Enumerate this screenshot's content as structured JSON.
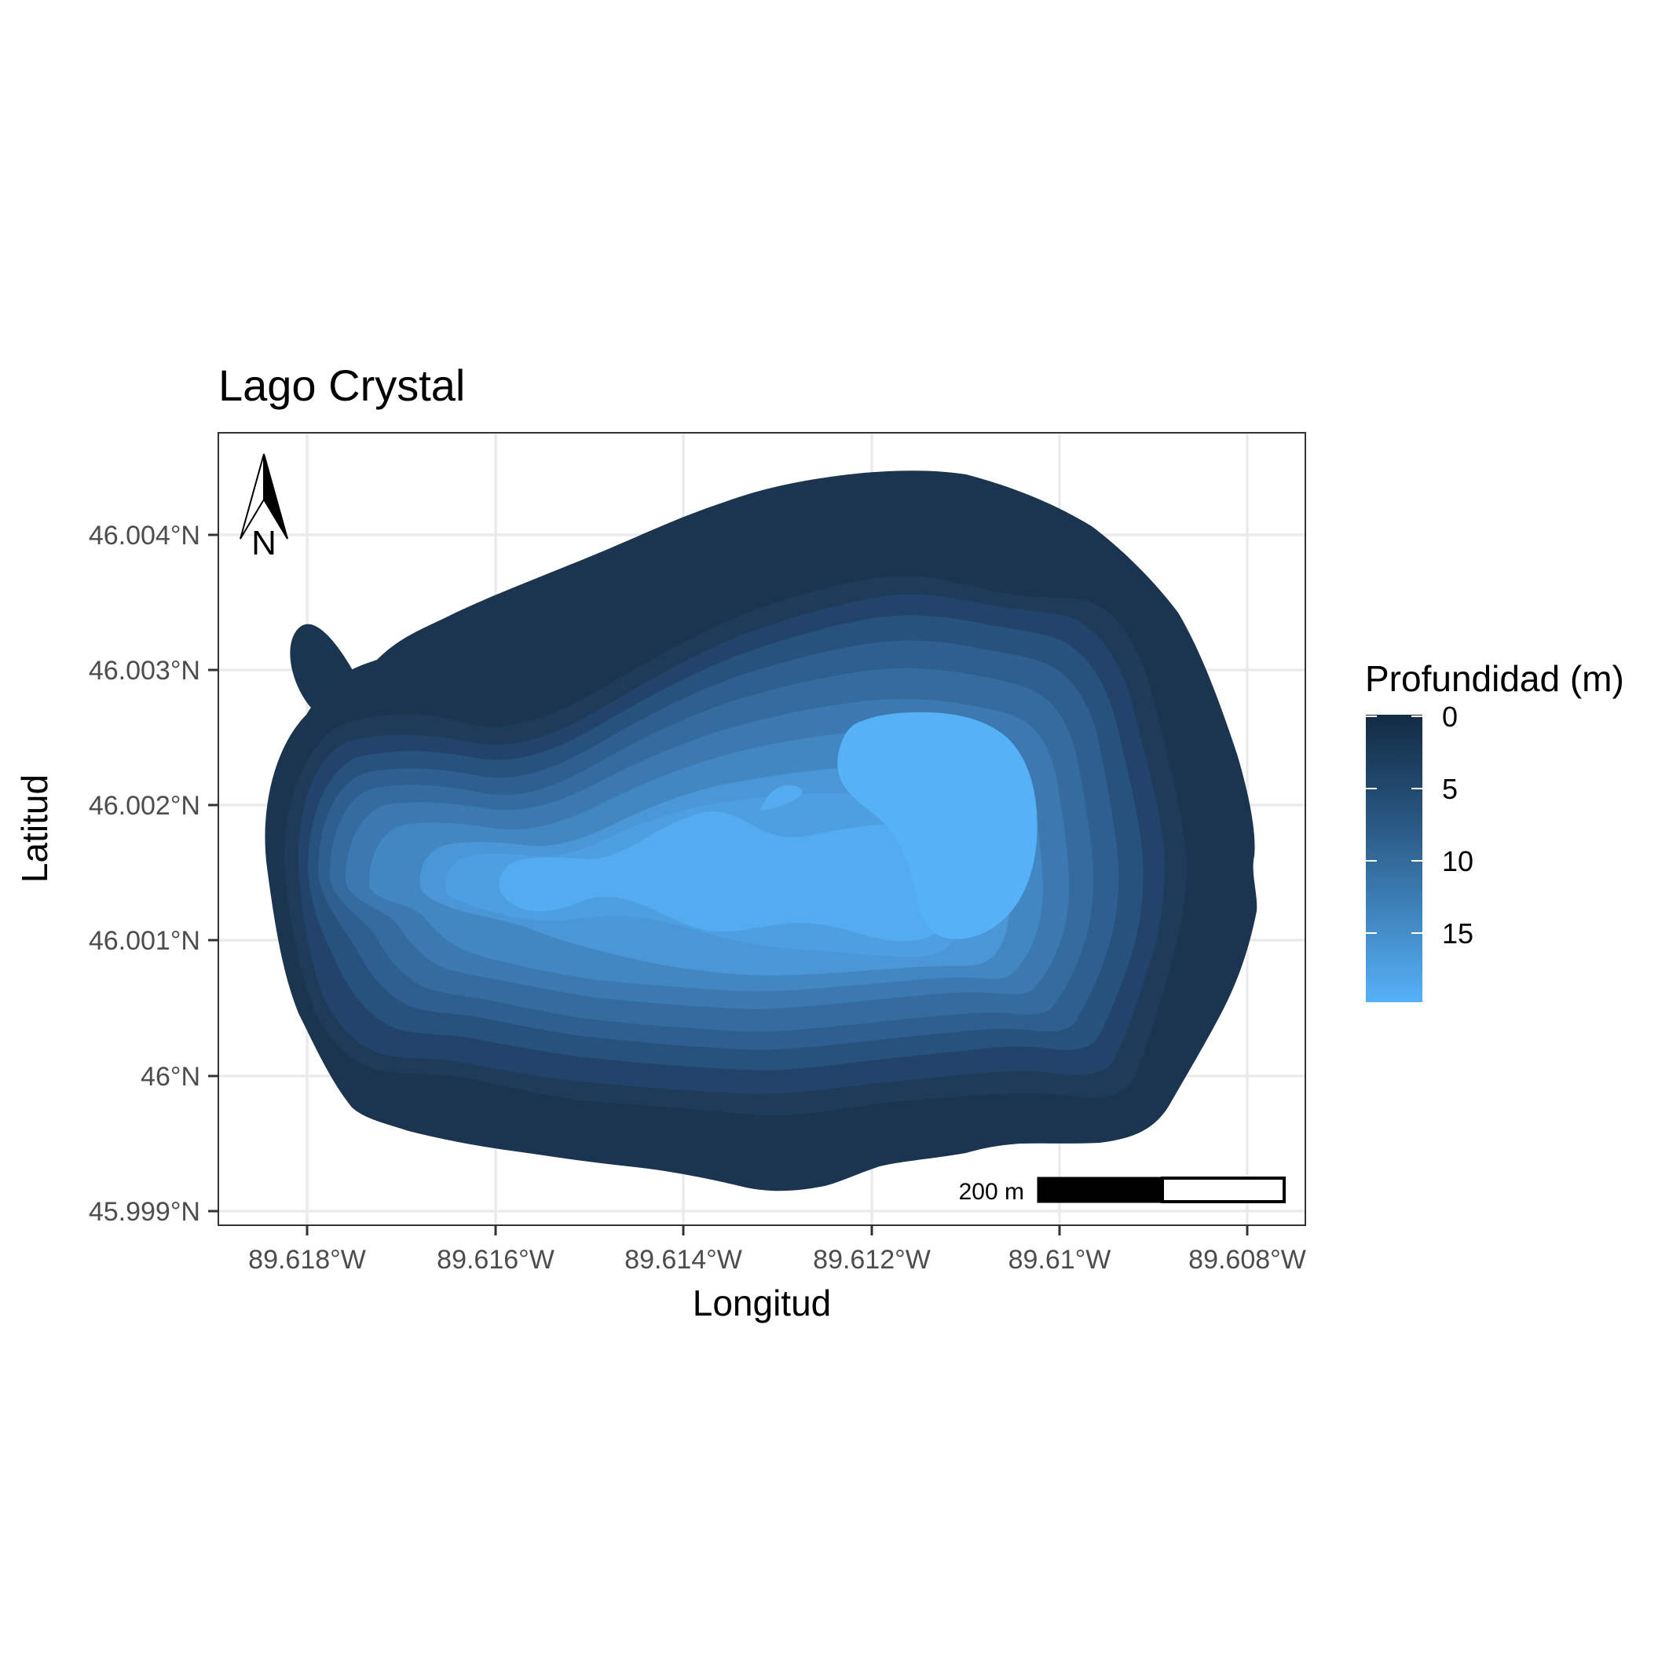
{
  "title": "Lago Crystal",
  "axes": {
    "x_title": "Longitud",
    "y_title": "Latitud",
    "x_ticks": [
      "89.618°W",
      "89.616°W",
      "89.614°W",
      "89.612°W",
      "89.61°W",
      "89.608°W"
    ],
    "y_ticks": [
      "46.004°N",
      "46.003°N",
      "46.002°N",
      "46.001°N",
      "46°N",
      "45.999°N"
    ]
  },
  "legend": {
    "title": "Profundidad (m)",
    "labels": [
      "0",
      "5",
      "10",
      "15"
    ],
    "color_shallow": "#132B43",
    "color_deep": "#56B1F7"
  },
  "scale_bar": {
    "label": "200 m"
  },
  "north_arrow": {
    "label": "N"
  },
  "chart_data": {
    "type": "contour",
    "title": "Lago Crystal",
    "xlabel": "Longitud",
    "ylabel": "Latitud",
    "xlim": [
      -89.6189,
      -89.6076
    ],
    "ylim": [
      45.9988,
      46.0047
    ],
    "grid": true,
    "legend_position": "right",
    "fill_variable": "Profundidad (m)",
    "depth_range": [
      0,
      19
    ],
    "deepest_region": {
      "lon": -89.6108,
      "lat": 46.0019,
      "depth": 19
    }
  }
}
